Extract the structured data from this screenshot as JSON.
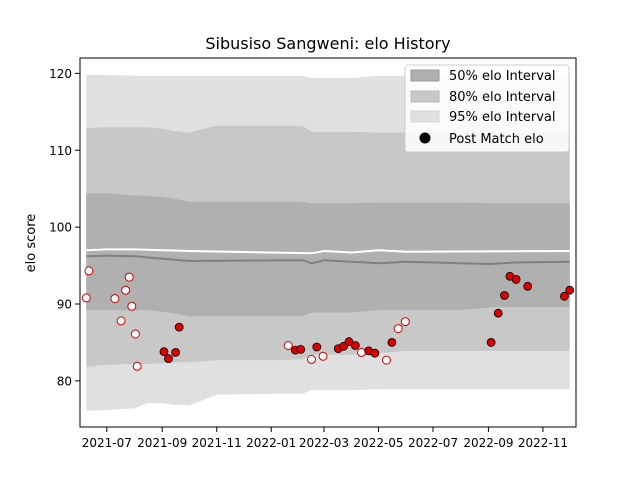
{
  "chart_data": {
    "type": "scatter",
    "title": "Sibusiso Sangweni: elo History",
    "xlabel": "",
    "ylabel": "elo score",
    "xlim": [
      "2021-06-01",
      "2022-12-08"
    ],
    "ylim": [
      74,
      122
    ],
    "x_ticks": [
      "2021-07-01",
      "2021-09-01",
      "2021-11-01",
      "2022-01-01",
      "2022-03-01",
      "2022-05-01",
      "2022-07-01",
      "2022-09-01",
      "2022-11-01"
    ],
    "x_tick_labels": [
      "2021-07",
      "2021-09",
      "2021-11",
      "2022-01",
      "2022-03",
      "2022-05",
      "2022-07",
      "2022-09",
      "2022-11"
    ],
    "y_ticks": [
      80,
      90,
      100,
      110,
      120
    ],
    "y_tick_labels": [
      "80",
      "90",
      "100",
      "110",
      "120"
    ],
    "grid": false,
    "legend_position": "top-right",
    "legend": {
      "interval50": "50% elo Interval",
      "interval80": "80% elo Interval",
      "interval95": "95% elo Interval",
      "post_match": "Post Match elo"
    },
    "colors": {
      "interval50": "#b0b0b0",
      "interval80": "#c8c8c8",
      "interval95": "#e0e0e0",
      "median_line": "#808080",
      "mean_line": "#ffffff",
      "point_edge": "#cc0000",
      "point_filled": "#dd0000",
      "point_open": "#ffffff"
    },
    "bands": {
      "x": [
        "2021-06-08",
        "2021-07-01",
        "2021-08-01",
        "2021-08-15",
        "2021-09-01",
        "2021-09-15",
        "2021-10-01",
        "2021-11-01",
        "2022-01-01",
        "2022-02-05",
        "2022-02-15",
        "2022-03-01",
        "2022-03-15",
        "2022-04-01",
        "2022-05-01",
        "2022-06-01",
        "2022-07-01",
        "2022-08-01",
        "2022-09-05",
        "2022-10-01",
        "2022-11-01",
        "2022-12-01"
      ],
      "p50_upper": [
        104.4,
        104.4,
        104.1,
        104.1,
        103.9,
        103.7,
        103.3,
        103.3,
        103.3,
        103.3,
        103.1,
        103.1,
        103.1,
        103.1,
        103.2,
        103.2,
        103.2,
        103.2,
        103.1,
        103.1,
        103.1,
        103.1
      ],
      "p50_lower": [
        89.2,
        89.2,
        89.2,
        89.2,
        89.0,
        88.8,
        88.4,
        88.4,
        88.4,
        88.4,
        88.9,
        88.9,
        88.9,
        88.9,
        89.2,
        89.2,
        89.2,
        89.2,
        89.6,
        89.6,
        89.6,
        89.6
      ],
      "p80_upper": [
        112.9,
        113.0,
        113.0,
        113.0,
        112.8,
        112.5,
        112.3,
        113.2,
        113.2,
        113.2,
        112.4,
        112.4,
        112.4,
        112.4,
        112.3,
        112.3,
        112.3,
        112.3,
        112.3,
        112.3,
        112.3,
        112.3
      ],
      "p80_lower": [
        81.8,
        82.1,
        82.2,
        82.2,
        82.3,
        82.4,
        82.4,
        82.7,
        82.7,
        82.8,
        83.4,
        83.4,
        83.4,
        83.4,
        83.6,
        83.9,
        83.9,
        83.9,
        83.9,
        83.9,
        83.9,
        83.9
      ],
      "p95_upper": [
        119.8,
        119.8,
        119.7,
        119.7,
        119.7,
        119.7,
        119.7,
        119.7,
        119.7,
        119.7,
        119.4,
        119.4,
        119.4,
        119.4,
        119.7,
        119.7,
        119.7,
        119.7,
        119.7,
        119.7,
        119.7,
        119.7
      ],
      "p95_lower": [
        76.1,
        76.2,
        76.4,
        77.1,
        77.1,
        76.9,
        76.8,
        78.2,
        78.3,
        78.3,
        78.8,
        78.8,
        78.8,
        78.8,
        78.9,
        78.9,
        78.9,
        78.9,
        78.9,
        78.9,
        78.9,
        78.9
      ]
    },
    "median_line": {
      "x": [
        "2021-06-08",
        "2021-07-01",
        "2021-08-01",
        "2021-10-01",
        "2022-02-05",
        "2022-02-15",
        "2022-03-01",
        "2022-04-01",
        "2022-05-01",
        "2022-06-01",
        "2022-09-01",
        "2022-10-01",
        "2022-12-01"
      ],
      "y": [
        96.2,
        96.3,
        96.2,
        95.6,
        95.7,
        95.3,
        95.7,
        95.5,
        95.3,
        95.5,
        95.2,
        95.4,
        95.5
      ]
    },
    "mean_line": {
      "x": [
        "2021-06-08",
        "2021-07-01",
        "2021-08-01",
        "2021-10-01",
        "2022-02-15",
        "2022-03-01",
        "2022-04-01",
        "2022-05-01",
        "2022-06-01",
        "2022-12-01"
      ],
      "y": [
        97.0,
        97.1,
        97.1,
        96.9,
        96.6,
        96.9,
        96.7,
        97.0,
        96.8,
        96.9
      ]
    },
    "series": [
      {
        "name": "Post Match elo",
        "x": [
          "2021-06-08",
          "2021-06-11",
          "2021-07-10",
          "2021-07-17",
          "2021-07-22",
          "2021-07-26",
          "2021-07-29",
          "2021-08-02",
          "2021-08-04",
          "2021-09-03",
          "2021-09-08",
          "2021-09-16",
          "2021-09-20",
          "2022-01-20",
          "2022-01-28",
          "2022-02-03",
          "2022-02-15",
          "2022-02-21",
          "2022-02-28",
          "2022-03-17",
          "2022-03-23",
          "2022-03-29",
          "2022-04-05",
          "2022-04-12",
          "2022-04-20",
          "2022-04-27",
          "2022-05-10",
          "2022-05-16",
          "2022-05-23",
          "2022-05-31",
          "2022-09-04",
          "2022-09-12",
          "2022-09-19",
          "2022-09-25",
          "2022-10-02",
          "2022-10-15",
          "2022-11-25",
          "2022-12-01"
        ],
        "y": [
          90.8,
          94.3,
          90.7,
          87.8,
          91.8,
          93.5,
          89.7,
          86.1,
          81.9,
          83.8,
          82.9,
          83.7,
          87.0,
          84.6,
          84.0,
          84.1,
          82.8,
          84.4,
          83.2,
          84.2,
          84.5,
          85.1,
          84.6,
          83.7,
          83.9,
          83.6,
          82.7,
          85.0,
          86.8,
          87.7,
          85.0,
          88.8,
          91.1,
          93.6,
          93.2,
          92.3,
          91.0,
          91.8
        ],
        "filled": [
          false,
          false,
          false,
          false,
          false,
          false,
          false,
          false,
          false,
          true,
          true,
          true,
          true,
          false,
          true,
          true,
          false,
          true,
          false,
          true,
          true,
          true,
          true,
          false,
          true,
          true,
          false,
          true,
          false,
          false,
          true,
          true,
          true,
          true,
          true,
          true,
          true,
          true
        ]
      }
    ]
  }
}
